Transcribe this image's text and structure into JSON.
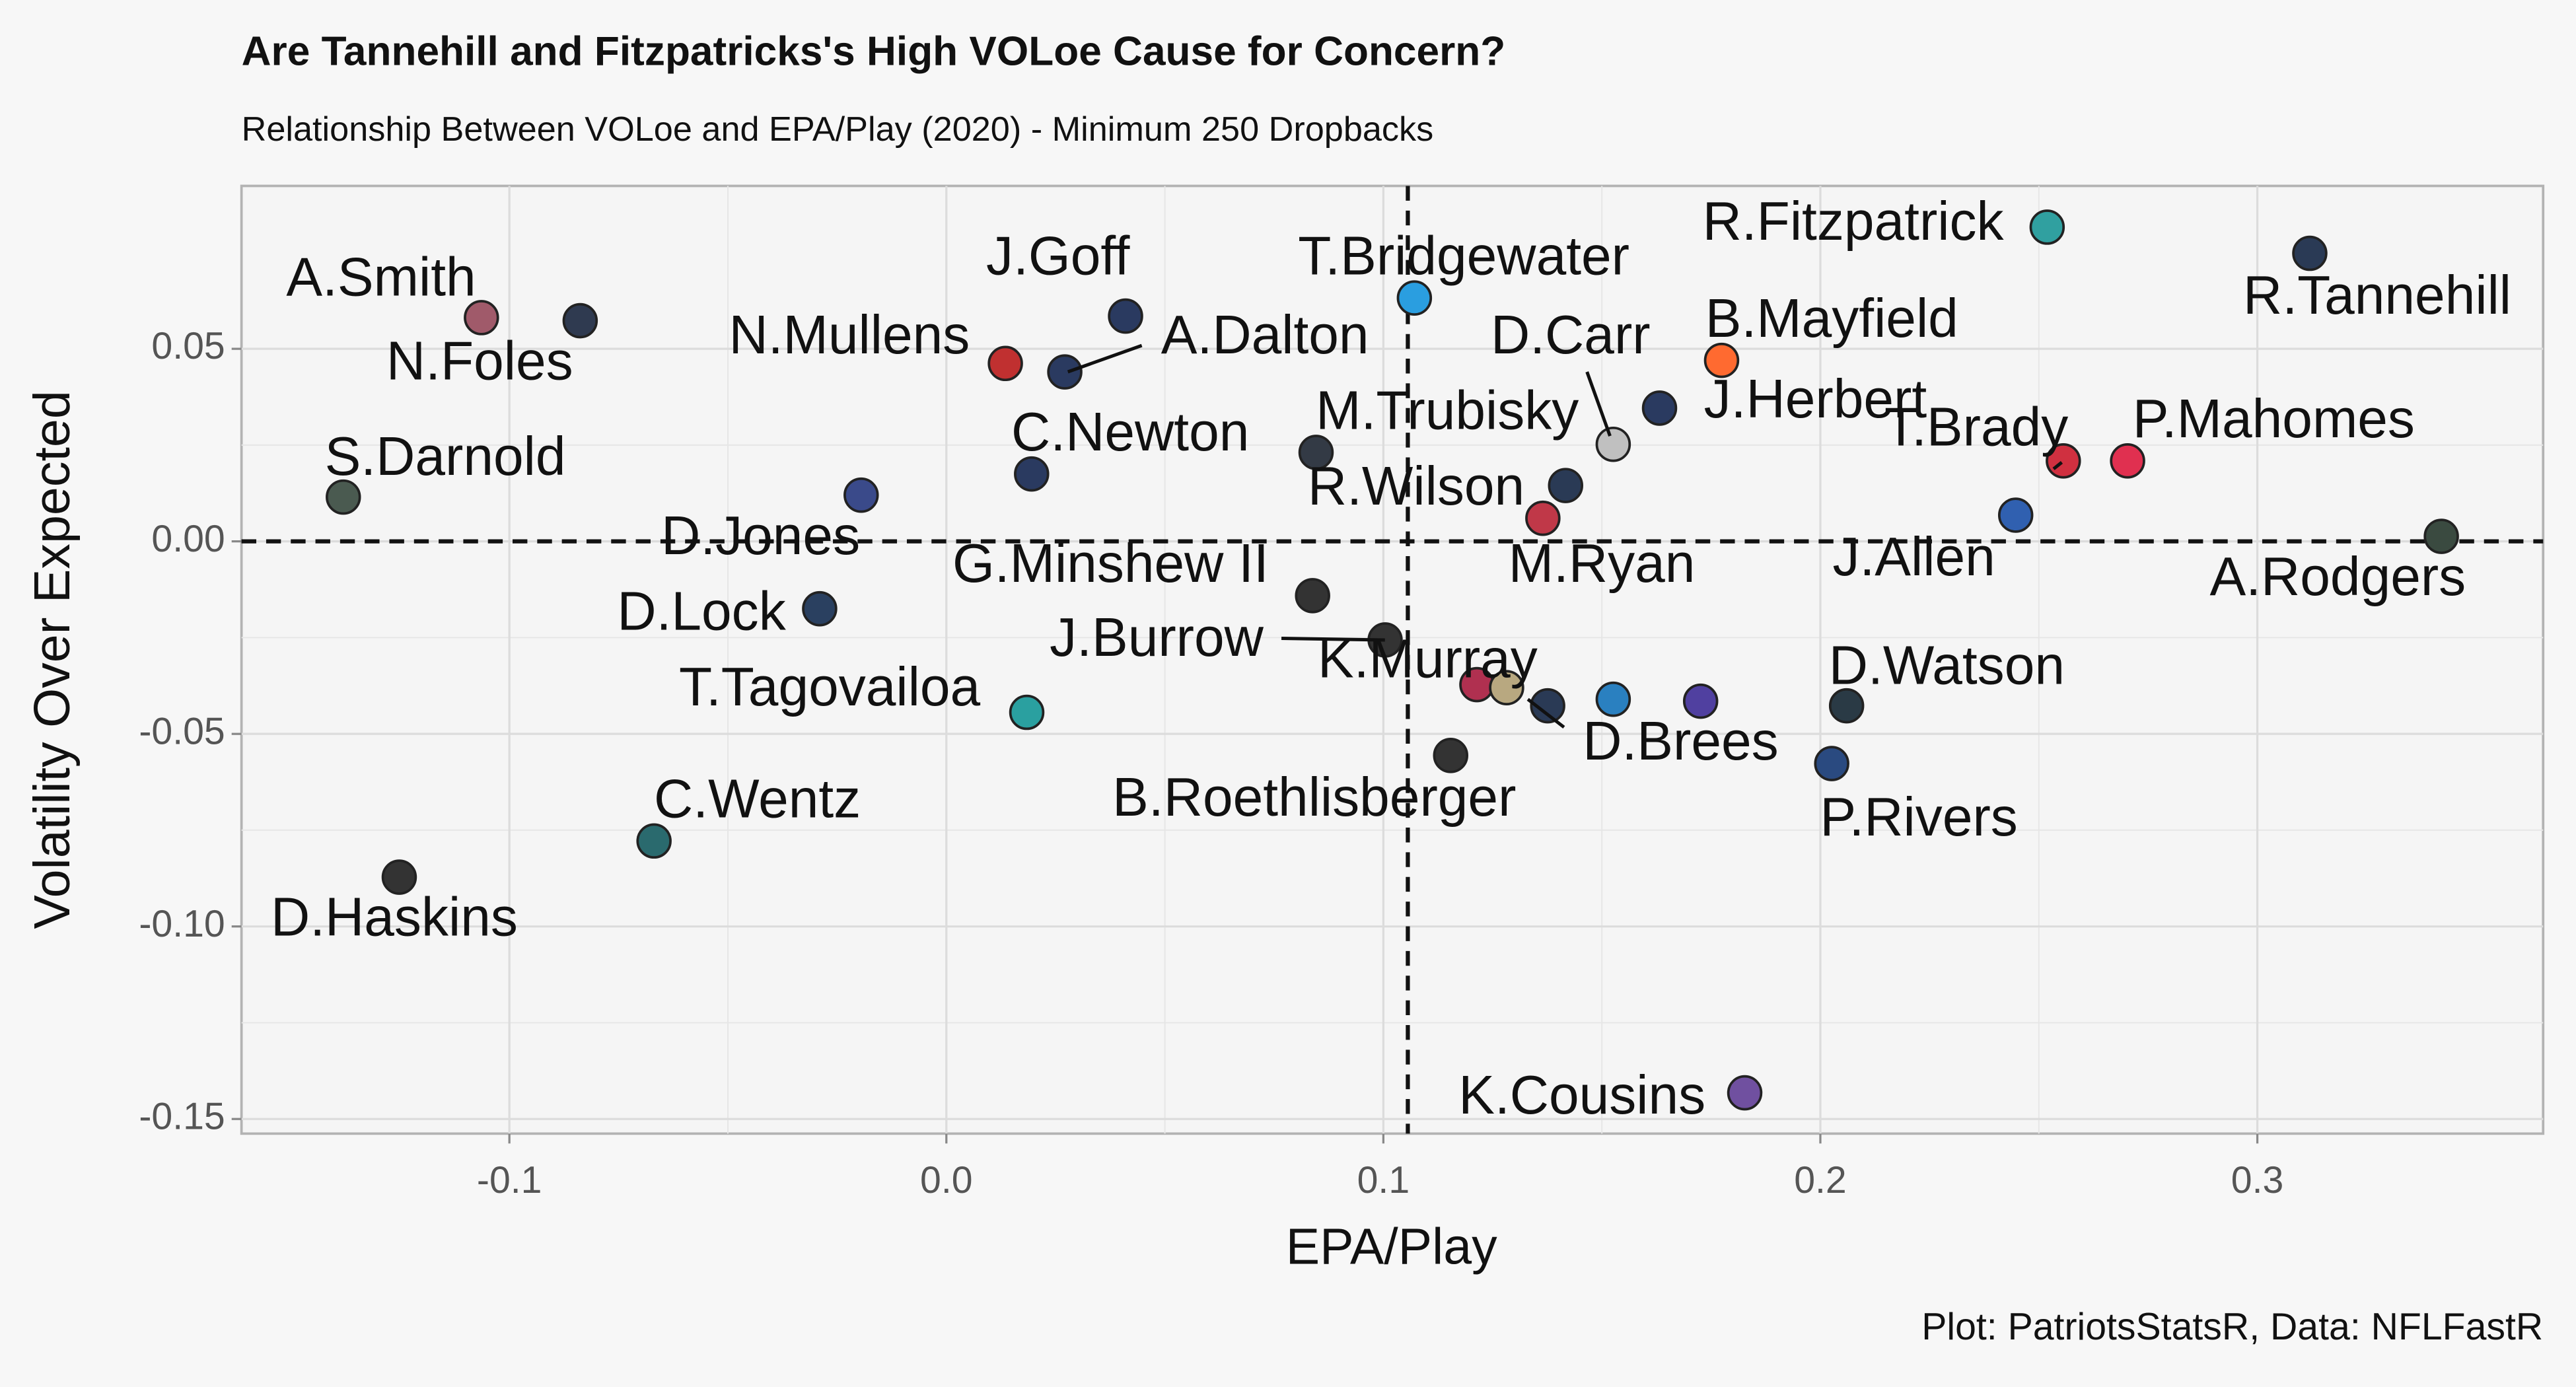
{
  "chart_data": {
    "type": "scatter",
    "title": "Are Tannehill and Fitzpatricks's High VOLoe Cause for Concern?",
    "subtitle": "Relationship Between VOLoe and EPA/Play (2020) - Minimum 250 Dropbacks",
    "x_label": "EPA/Play",
    "y_label": "Volatility Over Expected",
    "caption": "Plot: PatriotsStatsR, Data: NFLFastR",
    "xlim": [
      -0.1613,
      0.3654
    ],
    "ylim": [
      -0.1538,
      0.0923
    ],
    "xticks": [
      -0.1,
      {
        "value": 0,
        "label": "0.0"
      },
      0.1,
      0.2,
      0.3
    ],
    "yticks": [
      {
        "value": -0.15,
        "label": "-0.15"
      },
      {
        "value": -0.1,
        "label": "-0.10"
      },
      -0.05,
      {
        "value": 0,
        "label": "0.00"
      },
      0.05
    ],
    "grid": true,
    "vline": 0.1056,
    "hline": 0,
    "labels": [
      "A.Smith",
      "N.Foles",
      "S.Darnold",
      "D.Jones",
      "D.Lock",
      "D.Haskins",
      "C.Wentz",
      "T.Tagovailoa",
      "N.Mullens",
      "A.Dalton",
      "J.Goff",
      "C.Newton",
      "M.Trubisky",
      "G.Minshew II",
      "J.Burrow",
      "T.Bridgewater",
      "R.Wilson",
      "M.Ryan",
      "K.Murray",
      "D.Brees",
      "B.Roethlisberger",
      null,
      null,
      null,
      "D.Carr",
      "J.Herbert",
      "B.Mayfield",
      "J.Allen",
      "T.Brady",
      "P.Mahomes",
      "R.Fitzpatrick",
      "R.Tannehill",
      "A.Rodgers",
      "D.Watson",
      "P.Rivers",
      "K.Cousins"
    ],
    "x": [
      -0.1064,
      -0.0838,
      -0.138,
      -0.0195,
      -0.029,
      -0.1252,
      -0.0669,
      0.0184,
      0.0135,
      0.0271,
      0.041,
      0.0195,
      0.0846,
      0.0838,
      0.1004,
      0.1071,
      0.1365,
      0.1417,
      0.1214,
      0.1282,
      0.1154,
      0.1376,
      0.1526,
      0.1726,
      0.1526,
      0.1632,
      0.1774,
      0.2447,
      0.2556,
      0.2703,
      0.2519,
      0.312,
      0.3421,
      0.206,
      0.2026,
      0.1827
    ],
    "values": [
      0.0581,
      0.0573,
      0.0115,
      0.012,
      -0.0175,
      -0.0872,
      -0.0778,
      -0.0444,
      0.0462,
      0.044,
      0.0585,
      0.0175,
      0.0231,
      -0.0141,
      -0.0256,
      0.0632,
      0.006,
      0.0145,
      -0.0372,
      -0.038,
      -0.0556,
      -0.0427,
      -0.041,
      -0.0415,
      0.0252,
      0.0346,
      0.047,
      0.0068,
      0.0209,
      0.0209,
      0.0816,
      0.0748,
      0.0013,
      -0.0427,
      -0.0577,
      -0.1432
    ],
    "colors": [
      "#a05a6a",
      "#2f3a50",
      "#4a5a50",
      "#3a4a8a",
      "#2a4060",
      "#333333",
      "#2a6a6e",
      "#2aa0a0",
      "#c03030",
      "#2a3a60",
      "#2a3a60",
      "#2a3a60",
      "#333a45",
      "#333333",
      "#333333",
      "#2a9ee0",
      "#c03848",
      "#2a3a55",
      "#b03050",
      "#b8a880",
      "#333333",
      "#2a3a55",
      "#2a80c0",
      "#5040a0",
      "#c0c0c0",
      "#2a3a60",
      "#ff6a30",
      "#3060b0",
      "#d03040",
      "#e03050",
      "#30a0a0",
      "#2a3a55",
      "#3a4a40",
      "#2a3a45",
      "#2a4a80",
      "#7050a0"
    ]
  }
}
